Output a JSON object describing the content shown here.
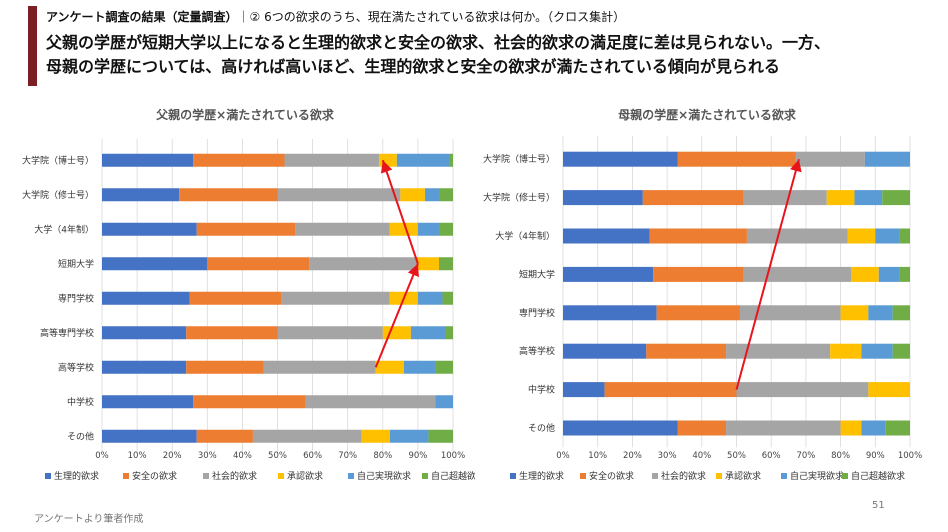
{
  "header": {
    "label": "アンケート調査の結果（定量調査）",
    "question": "｜② 6つの欲求のうち、現在満たされている欲求は何か。（クロス集計）",
    "headline_line1": "父親の学歴が短期大学以上になると生理的欲求と安全の欲求、社会的欲求の満足度に差は見られない。一方、",
    "headline_line2": "母親の学歴については、高ければ高いほど、生理的欲求と安全の欲求が満たされている傾向が見られる"
  },
  "colors": {
    "accent": "#7a1f24",
    "series": [
      "#4472c4",
      "#ed7d31",
      "#a5a5a5",
      "#ffc000",
      "#5b9bd5",
      "#70ad47"
    ],
    "arrow": "#e8141c"
  },
  "chart_data": [
    {
      "type": "bar",
      "orientation": "horizontal",
      "stacked": "percent",
      "title": "父親の学歴×満たされている欲求",
      "categories": [
        "大学院（博士号）",
        "大学院（修士号）",
        "大学（4年制）",
        "短期大学",
        "専門学校",
        "高等専門学校",
        "高等学校",
        "中学校",
        "その他"
      ],
      "series": [
        {
          "name": "生理的欲求",
          "values": [
            26,
            22,
            27,
            30,
            25,
            24,
            24,
            26,
            27
          ]
        },
        {
          "name": "安全の欲求",
          "values": [
            26,
            28,
            28,
            29,
            26,
            26,
            22,
            32,
            16
          ]
        },
        {
          "name": "社会的欲求",
          "values": [
            27,
            35,
            27,
            31,
            31,
            30,
            32,
            37,
            31
          ]
        },
        {
          "name": "承認欲求",
          "values": [
            5,
            7,
            8,
            6,
            8,
            8,
            8,
            0,
            8
          ]
        },
        {
          "name": "自己実現欲求",
          "values": [
            15,
            4,
            6,
            0,
            7,
            10,
            9,
            5,
            11
          ]
        },
        {
          "name": "自己超越欲求",
          "values": [
            1,
            4,
            4,
            4,
            3,
            2,
            5,
            0,
            7
          ]
        }
      ],
      "xlim": [
        0,
        100
      ],
      "xticks": [
        "0%",
        "10%",
        "20%",
        "30%",
        "40%",
        "50%",
        "60%",
        "70%",
        "80%",
        "90%",
        "100%"
      ],
      "annotation": "red arrow from 高等学校 (~78%) to 短期大学 (~90%), then from 短期大学 to 大学院（博士号）(~80%)",
      "legend": "bottom"
    },
    {
      "type": "bar",
      "orientation": "horizontal",
      "stacked": "percent",
      "title": "母親の学歴×満たされている欲求",
      "categories": [
        "大学院（博士号）",
        "大学院（修士号）",
        "大学（4年制）",
        "短期大学",
        "専門学校",
        "高等学校",
        "中学校",
        "その他"
      ],
      "series": [
        {
          "name": "生理的欲求",
          "values": [
            33,
            23,
            25,
            26,
            27,
            24,
            12,
            33
          ]
        },
        {
          "name": "安全の欲求",
          "values": [
            34,
            29,
            28,
            26,
            24,
            23,
            38,
            14
          ]
        },
        {
          "name": "社会的欲求",
          "values": [
            20,
            24,
            29,
            31,
            29,
            30,
            38,
            33
          ]
        },
        {
          "name": "承認欲求",
          "values": [
            0,
            8,
            8,
            8,
            8,
            9,
            12,
            6
          ]
        },
        {
          "name": "自己実現欲求",
          "values": [
            13,
            8,
            7,
            6,
            7,
            9,
            0,
            7
          ]
        },
        {
          "name": "自己超越欲求",
          "values": [
            0,
            8,
            3,
            3,
            5,
            5,
            0,
            7
          ]
        }
      ],
      "xlim": [
        0,
        100
      ],
      "xticks": [
        "0%",
        "10%",
        "20%",
        "30%",
        "40%",
        "50%",
        "60%",
        "70%",
        "80%",
        "90%",
        "100%"
      ],
      "annotation": "red arrow from 中学校 (~50%) to 大学院（博士号）(~68%)",
      "legend": "bottom"
    }
  ],
  "footer": {
    "source": "アンケートより筆者作成",
    "page_number": "51"
  }
}
